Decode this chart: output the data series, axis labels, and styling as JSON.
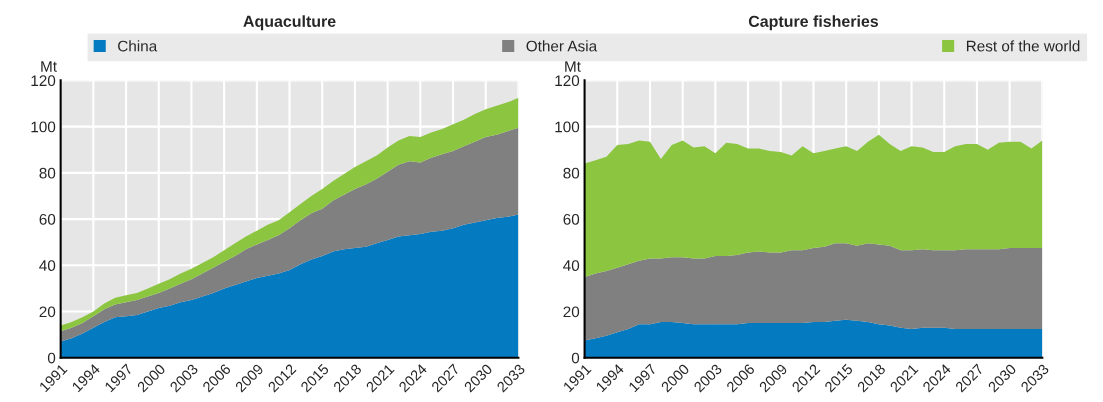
{
  "chart_data": [
    {
      "type": "area",
      "stacked": true,
      "title": "Aquaculture",
      "ylabel": "Mt",
      "legend": "top",
      "grid": true,
      "x": [
        1991,
        1992,
        1993,
        1994,
        1995,
        1996,
        1997,
        1998,
        1999,
        2000,
        2001,
        2002,
        2003,
        2004,
        2005,
        2006,
        2007,
        2008,
        2009,
        2010,
        2011,
        2012,
        2013,
        2014,
        2015,
        2016,
        2017,
        2018,
        2019,
        2020,
        2021,
        2022,
        2023,
        2024,
        2025,
        2026,
        2027,
        2028,
        2029,
        2030,
        2031,
        2032,
        2033
      ],
      "xlim": [
        1991,
        2033
      ],
      "xticks": [
        1991,
        1994,
        1997,
        2000,
        2003,
        2006,
        2009,
        2012,
        2015,
        2018,
        2021,
        2024,
        2027,
        2030,
        2033
      ],
      "ylim": [
        0,
        120
      ],
      "yticks": [
        0,
        20,
        40,
        60,
        80,
        100,
        120
      ],
      "series": [
        {
          "name": "China",
          "color": "#047ac1",
          "values": [
            7,
            8.5,
            10.5,
            13,
            15.5,
            17.5,
            18,
            18.5,
            20,
            21.5,
            22.5,
            24,
            25,
            26.5,
            28,
            30,
            31.5,
            33,
            34.5,
            35.5,
            36.5,
            38,
            40.5,
            42.5,
            44,
            46,
            47,
            47.5,
            48,
            49.5,
            51,
            52.5,
            53,
            53.5,
            54.5,
            55,
            56,
            57.5,
            58.5,
            59.5,
            60.5,
            61,
            62
          ]
        },
        {
          "name": "Other Asia",
          "color": "#808080",
          "values": [
            4.5,
            4.5,
            4.5,
            5,
            5.5,
            5.5,
            6,
            6.5,
            6.5,
            6.5,
            7.5,
            8,
            9,
            10,
            11,
            11.5,
            12.5,
            14,
            14.5,
            15.5,
            16.5,
            18,
            19,
            20,
            20.5,
            22,
            23.5,
            25.5,
            27,
            28,
            29.5,
            31,
            32,
            31,
            32,
            33,
            33.5,
            34,
            35,
            36,
            36,
            37,
            37.5
          ]
        },
        {
          "name": "Rest of the world",
          "color": "#8cc641",
          "values": [
            2.5,
            2.5,
            2.5,
            2,
            2.5,
            3,
            3,
            3,
            3.5,
            4,
            4,
            4.5,
            4.5,
            4.5,
            4.5,
            5,
            5.5,
            5.5,
            6,
            6.5,
            6.5,
            7,
            7,
            7.5,
            8.5,
            8.5,
            9,
            9.5,
            10,
            10,
            10.5,
            10.5,
            11,
            11,
            11,
            11,
            11.5,
            11.5,
            12,
            12,
            12.5,
            12.5,
            13
          ]
        }
      ]
    },
    {
      "type": "area",
      "stacked": true,
      "title": "Capture fisheries",
      "ylabel": "Mt",
      "grid": true,
      "x": [
        1991,
        1992,
        1993,
        1994,
        1995,
        1996,
        1997,
        1998,
        1999,
        2000,
        2001,
        2002,
        2003,
        2004,
        2005,
        2006,
        2007,
        2008,
        2009,
        2010,
        2011,
        2012,
        2013,
        2014,
        2015,
        2016,
        2017,
        2018,
        2019,
        2020,
        2021,
        2022,
        2023,
        2024,
        2025,
        2026,
        2027,
        2028,
        2029,
        2030,
        2031,
        2032,
        2033
      ],
      "xlim": [
        1991,
        2033
      ],
      "xticks": [
        1991,
        1994,
        1997,
        2000,
        2003,
        2006,
        2009,
        2012,
        2015,
        2018,
        2021,
        2024,
        2027,
        2030,
        2033
      ],
      "ylim": [
        0,
        120
      ],
      "yticks": [
        0,
        20,
        40,
        60,
        80,
        100,
        120
      ],
      "series": [
        {
          "color": "#047ac1",
          "values": [
            7.5,
            8.5,
            9.5,
            11,
            12.5,
            14.5,
            14.5,
            15.5,
            15.5,
            15,
            14.5,
            14.5,
            14.5,
            14.5,
            14.5,
            15,
            15,
            15,
            15,
            15,
            15,
            15.5,
            15.5,
            16,
            16.5,
            16,
            15.5,
            14.5,
            14,
            13,
            12.5,
            13,
            13,
            13,
            12.5,
            12.5,
            12.5,
            12.5,
            12.5,
            12.5,
            12.5,
            12.5,
            12.5
          ]
        },
        {
          "color": "#808080",
          "values": [
            27.5,
            28,
            28,
            28,
            28,
            27.5,
            28.5,
            27.5,
            28,
            28.5,
            28.5,
            28.5,
            29.5,
            29.5,
            30,
            30.5,
            31,
            30.5,
            30.5,
            31.5,
            31.5,
            32,
            32.5,
            33.5,
            33,
            32.5,
            34,
            34.5,
            34.5,
            33.5,
            34,
            34,
            33.5,
            33.5,
            34,
            34.5,
            34.5,
            34.5,
            34.5,
            35,
            35,
            35,
            35
          ]
        },
        {
          "color": "#8cc641",
          "values": [
            49,
            49,
            49.5,
            53,
            52,
            52,
            50.5,
            43,
            48.5,
            50.5,
            48,
            48.5,
            44.5,
            49,
            48,
            45,
            44.5,
            44,
            43.5,
            41,
            45,
            41,
            41.5,
            41,
            42,
            41,
            44,
            47.5,
            44,
            43,
            45,
            44,
            42.5,
            42.5,
            45,
            45.5,
            45.5,
            43,
            46,
            46,
            46,
            43,
            46.5
          ]
        }
      ]
    }
  ]
}
